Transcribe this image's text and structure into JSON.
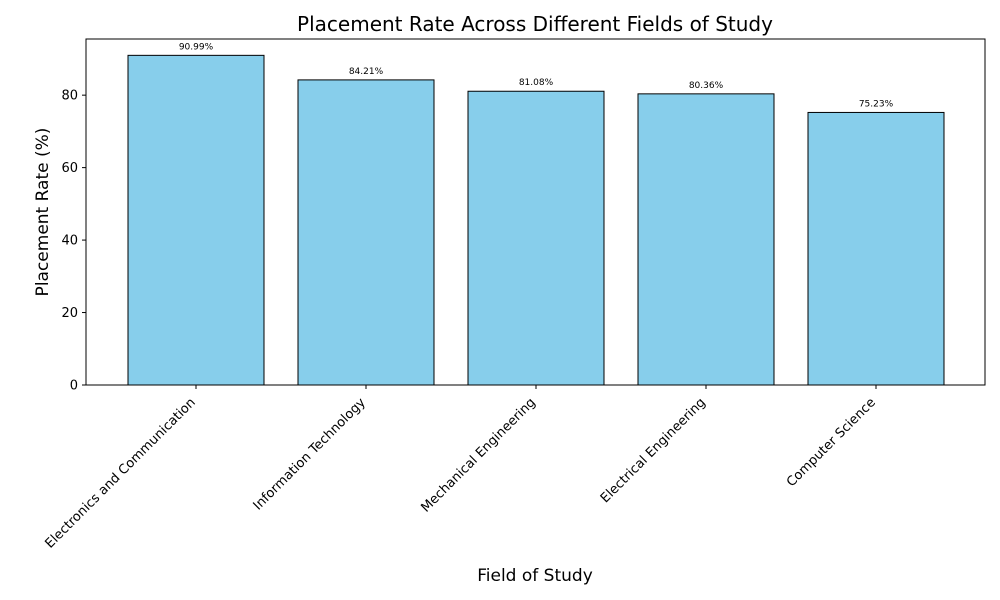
{
  "chart_data": {
    "type": "bar",
    "title": "Placement Rate Across Different Fields of Study",
    "xlabel": "Field of Study",
    "ylabel": "Placement Rate (%)",
    "categories": [
      "Electronics and Communication",
      "Information Technology",
      "Mechanical Engineering",
      "Electrical Engineering",
      "Computer Science"
    ],
    "values": [
      90.99,
      84.21,
      81.08,
      80.36,
      75.23
    ],
    "data_labels": [
      "90.99%",
      "84.21%",
      "81.08%",
      "80.36%",
      "75.23%"
    ],
    "ylim": [
      0,
      95.5
    ],
    "yticks": [
      0,
      20,
      40,
      60,
      80
    ],
    "grid": false,
    "bar_color": "#87CEEB",
    "edge_color": "#000000"
  }
}
